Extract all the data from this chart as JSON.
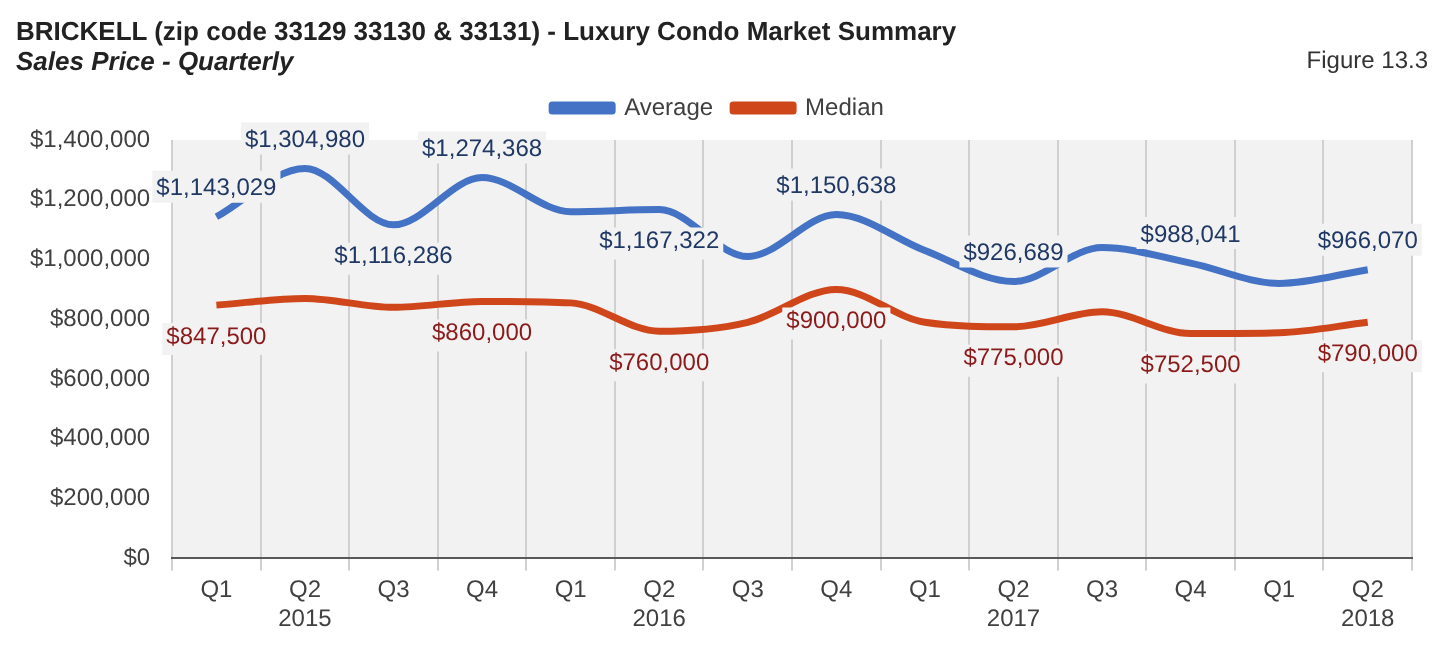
{
  "chart_data": {
    "type": "line",
    "title": "BRICKELL (zip code 33129 33130 & 33131) - Luxury Condo Market Summary",
    "subtitle": "Sales Price - Quarterly",
    "annotations": [
      "Figure 13.3"
    ],
    "categories": [
      "Q1",
      "Q2 2015",
      "Q3",
      "Q4",
      "Q1",
      "Q2 2016",
      "Q3",
      "Q4",
      "Q1",
      "Q2 2017",
      "Q3",
      "Q4",
      "Q1",
      "Q2 2018"
    ],
    "series": [
      {
        "name": "Average",
        "color": "#4472c4",
        "values": [
          1143029,
          1304980,
          1116286,
          1274368,
          1160000,
          1167322,
          1010000,
          1150638,
          1030000,
          926689,
          1040000,
          988041,
          920000,
          966070
        ],
        "value_labels": [
          "$1,143,029",
          "$1,304,980",
          "$1,116,286",
          "$1,274,368",
          null,
          "$1,167,322",
          null,
          "$1,150,638",
          null,
          "$926,689",
          null,
          "$988,041",
          null,
          "$966,070"
        ]
      },
      {
        "name": "Median",
        "color": "#d0461b",
        "values": [
          847500,
          870000,
          840000,
          860000,
          855000,
          760000,
          790000,
          900000,
          790000,
          775000,
          825000,
          752500,
          755000,
          790000
        ],
        "value_labels": [
          "$847,500",
          null,
          null,
          "$860,000",
          null,
          "$760,000",
          null,
          "$900,000",
          null,
          "$775,000",
          null,
          "$752,500",
          null,
          "$790,000"
        ]
      }
    ],
    "ylim": [
      0,
      1400000
    ],
    "yticks": [
      {
        "value": 0,
        "label": "$0"
      },
      {
        "value": 200000,
        "label": "$200,000"
      },
      {
        "value": 400000,
        "label": "$400,000"
      },
      {
        "value": 600000,
        "label": "$600,000"
      },
      {
        "value": 800000,
        "label": "$800,000"
      },
      {
        "value": 1000000,
        "label": "$1,000,000"
      },
      {
        "value": 1200000,
        "label": "$1,200,000"
      },
      {
        "value": 1400000,
        "label": "$1,400,000"
      }
    ],
    "grid": "x",
    "legend": "top",
    "marker": "none",
    "line_style": "solid"
  }
}
